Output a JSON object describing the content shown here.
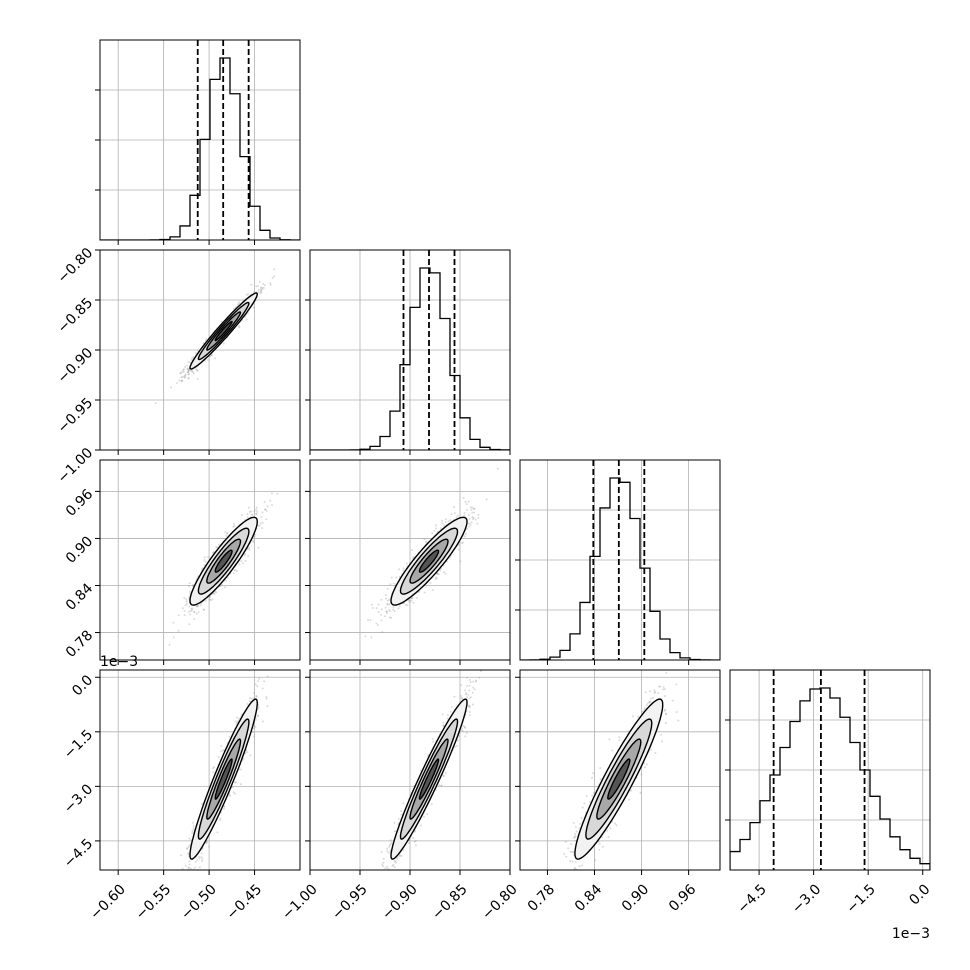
{
  "chart_data": {
    "type": "corner",
    "ndim": 4,
    "grid": true,
    "parameters": [
      {
        "range": [
          -0.62,
          -0.4
        ],
        "ticks": [
          -0.6,
          -0.55,
          -0.5,
          -0.45
        ],
        "tick_labels": [
          "−0.60",
          "−0.55",
          "−0.50",
          "−0.45"
        ],
        "quantiles": [
          -0.5125,
          -0.4845,
          -0.4565
        ],
        "mean": -0.484,
        "sd": 0.0185,
        "offset_label": ""
      },
      {
        "range": [
          -1.0,
          -0.8
        ],
        "ticks": [
          -1.0,
          -0.95,
          -0.9,
          -0.85,
          -0.8
        ],
        "tick_labels": [
          "−1.00",
          "−0.95",
          "−0.90",
          "−0.85",
          "−0.80"
        ],
        "quantiles": [
          -0.9065,
          -0.881,
          -0.8555
        ],
        "mean": -0.881,
        "sd": 0.019,
        "offset_label": ""
      },
      {
        "range": [
          0.745,
          1.0
        ],
        "ticks": [
          0.78,
          0.84,
          0.9,
          0.96
        ],
        "tick_labels": [
          "0.78",
          "0.84",
          "0.90",
          "0.96"
        ],
        "quantiles": [
          0.8385,
          0.871,
          0.9035
        ],
        "mean": 0.871,
        "sd": 0.028,
        "offset_label": ""
      },
      {
        "range": [
          -0.0053,
          0.0002
        ],
        "ticks": [
          -0.0045,
          -0.003,
          -0.0015,
          0.0
        ],
        "tick_labels": [
          "−4.5",
          "−3.0",
          "−1.5",
          "0.0"
        ],
        "quantiles": [
          -0.0041,
          -0.0028,
          -0.0016
        ],
        "mean": -0.0028,
        "sd": 0.0011,
        "offset_label": "1e−3"
      }
    ],
    "correlations": [
      [
        1.0,
        0.97,
        0.9,
        0.95
      ],
      [
        0.97,
        1.0,
        0.9,
        0.96
      ],
      [
        0.9,
        0.9,
        1.0,
        0.93
      ],
      [
        0.95,
        0.96,
        0.93,
        1.0
      ]
    ],
    "bins": 20,
    "contour_levels_sigma": [
      0.5,
      1.0,
      1.5,
      2.0
    ],
    "colors": {
      "line": "#000000",
      "grid": "#b0b0b0",
      "points": "#999999"
    }
  }
}
